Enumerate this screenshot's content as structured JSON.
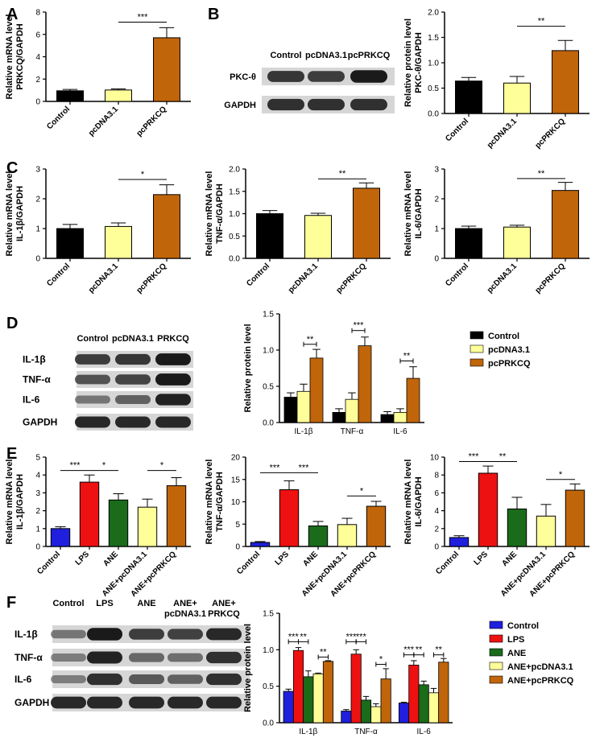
{
  "colors": {
    "control": "#000000",
    "pcdna": "#ffff99",
    "pcprkcq": "#c0650a",
    "blue": "#1f1fdd",
    "red": "#ee1111",
    "green": "#1a6b1a",
    "blot_bg": "#d6d6d6",
    "band": "#1a1a1a"
  },
  "panel_letters": [
    "A",
    "B",
    "C",
    "D",
    "E",
    "F"
  ],
  "blot_B": {
    "lanes": [
      "Control",
      "pcDNA3.1",
      "pcPRKCQ"
    ],
    "rows": [
      "PKC-θ",
      "GAPDH"
    ],
    "intensity": [
      [
        0.8,
        0.75,
        1.0
      ],
      [
        0.85,
        0.85,
        0.85
      ]
    ]
  },
  "blot_D": {
    "lanes": [
      "Control",
      "pcDNA3.1",
      "PRKCQ"
    ],
    "rows": [
      "IL-1β",
      "TNF-α",
      "IL-6",
      "GAPDH"
    ],
    "intensity": [
      [
        0.75,
        0.8,
        1.0
      ],
      [
        0.6,
        0.7,
        1.0
      ],
      [
        0.35,
        0.5,
        0.95
      ],
      [
        0.9,
        0.9,
        0.9
      ]
    ]
  },
  "blot_F": {
    "lanes": [
      "Control",
      "LPS",
      "ANE",
      "ANE+",
      "ANE+"
    ],
    "lanes_sub": [
      "",
      "",
      "",
      "pcDNA3.1",
      "PRKCQ"
    ],
    "rows": [
      "IL-1β",
      "TNF-α",
      "IL-6",
      "GAPDH"
    ],
    "intensity": [
      [
        0.35,
        1.0,
        0.75,
        0.72,
        0.9
      ],
      [
        0.3,
        0.95,
        0.45,
        0.4,
        0.85
      ],
      [
        0.3,
        0.85,
        0.55,
        0.5,
        0.85
      ],
      [
        0.9,
        0.9,
        0.9,
        0.9,
        0.9
      ]
    ]
  },
  "legend_D": [
    "Control",
    "pcDNA3.1",
    "pcPRKCQ"
  ],
  "legend_F": [
    "Control",
    "LPS",
    "ANE",
    "ANE+pcDNA3.1",
    "ANE+pcPRKCQ"
  ],
  "chart_data": [
    {
      "id": "A",
      "type": "bar",
      "categories": [
        "Control",
        "pcDNA3.1",
        "pcPRKCQ"
      ],
      "values": [
        0.95,
        1.02,
        5.7
      ],
      "errors": [
        0.12,
        0.1,
        0.9
      ],
      "ylabel": [
        "Relative mRNA level",
        "PRKCQ/GAPDH"
      ],
      "ylim": [
        0,
        8
      ],
      "yticks": [
        0,
        2,
        4,
        6,
        8
      ],
      "colors": [
        "control",
        "pcdna",
        "pcprkcq"
      ],
      "sig": [
        {
          "from": 1,
          "to": 2,
          "label": "***",
          "y": 7.1
        }
      ]
    },
    {
      "id": "B",
      "type": "bar",
      "categories": [
        "Control",
        "pcDNA3.1",
        "pcPRKCQ"
      ],
      "values": [
        0.64,
        0.6,
        1.24
      ],
      "errors": [
        0.07,
        0.13,
        0.2
      ],
      "ylabel": [
        "Relative protein level",
        "PKC-θ/GAPDH"
      ],
      "ylim": [
        0,
        2.0
      ],
      "yticks": [
        0.0,
        0.5,
        1.0,
        1.5,
        2.0
      ],
      "decimals": 1,
      "colors": [
        "control",
        "pcdna",
        "pcprkcq"
      ],
      "sig": [
        {
          "from": 1,
          "to": 2,
          "label": "**",
          "y": 1.72
        }
      ]
    },
    {
      "id": "C1",
      "type": "bar",
      "categories": [
        "Control",
        "pcDNA3.1",
        "pcPRKCQ"
      ],
      "values": [
        1.0,
        1.07,
        2.14
      ],
      "errors": [
        0.14,
        0.12,
        0.33
      ],
      "ylabel": [
        "Relative mRNA level",
        "IL-1β/GAPDH"
      ],
      "ylim": [
        0,
        3
      ],
      "yticks": [
        0,
        1,
        2,
        3
      ],
      "colors": [
        "control",
        "pcdna",
        "pcprkcq"
      ],
      "sig": [
        {
          "from": 1,
          "to": 2,
          "label": "*",
          "y": 2.65
        }
      ]
    },
    {
      "id": "C2",
      "type": "bar",
      "categories": [
        "Control",
        "pcDNA3.1",
        "pcPRKCQ"
      ],
      "values": [
        1.0,
        0.96,
        1.57
      ],
      "errors": [
        0.07,
        0.05,
        0.12
      ],
      "ylabel": [
        "Relative mRNA level",
        "TNF-α/GAPDH"
      ],
      "ylim": [
        0,
        2.0
      ],
      "yticks": [
        0.0,
        0.5,
        1.0,
        1.5,
        2.0
      ],
      "decimals": 1,
      "colors": [
        "control",
        "pcdna",
        "pcprkcq"
      ],
      "sig": [
        {
          "from": 1,
          "to": 2,
          "label": "**",
          "y": 1.78
        }
      ]
    },
    {
      "id": "C3",
      "type": "bar",
      "categories": [
        "Control",
        "pcDNA3.1",
        "pcPRKCQ"
      ],
      "values": [
        1.0,
        1.05,
        2.28
      ],
      "errors": [
        0.08,
        0.06,
        0.27
      ],
      "ylabel": [
        "Relative mRNA level",
        "IL-6/GAPDH"
      ],
      "ylim": [
        0,
        3
      ],
      "yticks": [
        0,
        1,
        2,
        3
      ],
      "colors": [
        "control",
        "pcdna",
        "pcprkcq"
      ],
      "sig": [
        {
          "from": 1,
          "to": 2,
          "label": "**",
          "y": 2.68
        }
      ]
    },
    {
      "id": "D",
      "type": "grouped-bar",
      "groups": [
        "IL-1β",
        "TNF-α",
        "IL-6"
      ],
      "series": [
        {
          "name": "Control",
          "color": "control",
          "values": [
            0.35,
            0.14,
            0.11
          ],
          "errors": [
            0.06,
            0.05,
            0.04
          ]
        },
        {
          "name": "pcDNA3.1",
          "color": "pcdna",
          "values": [
            0.43,
            0.32,
            0.14
          ],
          "errors": [
            0.1,
            0.09,
            0.05
          ]
        },
        {
          "name": "pcPRKCQ",
          "color": "pcprkcq",
          "values": [
            0.89,
            1.06,
            0.61
          ],
          "errors": [
            0.12,
            0.12,
            0.16
          ]
        }
      ],
      "ylabel": [
        "Relative protein level"
      ],
      "ylim": [
        0,
        1.5
      ],
      "yticks": [
        0.0,
        0.5,
        1.0,
        1.5
      ],
      "decimals": 1,
      "sig": [
        {
          "group": 0,
          "from": 1,
          "to": 2,
          "label": "**",
          "y": 1.08
        },
        {
          "group": 1,
          "from": 1,
          "to": 2,
          "label": "***",
          "y": 1.27
        },
        {
          "group": 2,
          "from": 1,
          "to": 2,
          "label": "**",
          "y": 0.85
        }
      ]
    },
    {
      "id": "E1",
      "type": "bar",
      "categories": [
        "Control",
        "LPS",
        "ANE",
        "ANE+pcDNA3.1",
        "ANE+pcPRKCQ"
      ],
      "values": [
        1.0,
        3.6,
        2.6,
        2.2,
        3.4
      ],
      "errors": [
        0.1,
        0.4,
        0.35,
        0.45,
        0.45
      ],
      "ylabel": [
        "Relative mRNA level",
        "IL-1β/GAPDH"
      ],
      "ylim": [
        0,
        5
      ],
      "yticks": [
        0,
        1,
        2,
        3,
        4,
        5
      ],
      "colors": [
        "blue",
        "red",
        "green",
        "pcdna",
        "pcprkcq"
      ],
      "sig": [
        {
          "from": 0,
          "to": 1,
          "label": "***",
          "y": 4.25
        },
        {
          "from": 1,
          "to": 2,
          "label": "*",
          "y": 4.25
        },
        {
          "from": 3,
          "to": 4,
          "label": "*",
          "y": 4.25
        }
      ]
    },
    {
      "id": "E2",
      "type": "bar",
      "categories": [
        "Control",
        "LPS",
        "ANE",
        "ANE+pcDNA3.1",
        "ANE+pcPRKCQ"
      ],
      "values": [
        0.9,
        12.7,
        4.6,
        4.9,
        9.0
      ],
      "errors": [
        0.2,
        2.0,
        1.0,
        1.4,
        1.1
      ],
      "ylabel": [
        "Relative mRNA level",
        "TNF-α/GAPDH"
      ],
      "ylim": [
        0,
        20
      ],
      "yticks": [
        0,
        5,
        10,
        15,
        20
      ],
      "colors": [
        "blue",
        "red",
        "green",
        "pcdna",
        "pcprkcq"
      ],
      "sig": [
        {
          "from": 0,
          "to": 1,
          "label": "***",
          "y": 16.5
        },
        {
          "from": 1,
          "to": 2,
          "label": "***",
          "y": 16.5
        },
        {
          "from": 3,
          "to": 4,
          "label": "*",
          "y": 11.3
        }
      ]
    },
    {
      "id": "E3",
      "type": "bar",
      "categories": [
        "Control",
        "LPS",
        "ANE",
        "ANE+pcDNA3.1",
        "ANE+pcPRKCQ"
      ],
      "values": [
        1.0,
        8.2,
        4.2,
        3.4,
        6.3
      ],
      "errors": [
        0.2,
        0.8,
        1.3,
        1.3,
        0.7
      ],
      "ylabel": [
        "Relative mRNA level",
        "IL-6/GAPDH"
      ],
      "ylim": [
        0,
        10
      ],
      "yticks": [
        0,
        2,
        4,
        6,
        8,
        10
      ],
      "colors": [
        "blue",
        "red",
        "green",
        "pcdna",
        "pcprkcq"
      ],
      "sig": [
        {
          "from": 0,
          "to": 1,
          "label": "***",
          "y": 9.5
        },
        {
          "from": 1,
          "to": 2,
          "label": "**",
          "y": 9.5
        },
        {
          "from": 3,
          "to": 4,
          "label": "*",
          "y": 7.5
        }
      ]
    },
    {
      "id": "F",
      "type": "grouped-bar",
      "groups": [
        "IL-1β",
        "TNF-α",
        "IL-6"
      ],
      "series": [
        {
          "name": "Control",
          "color": "blue",
          "values": [
            0.43,
            0.16,
            0.27
          ],
          "errors": [
            0.03,
            0.02,
            0.01
          ]
        },
        {
          "name": "LPS",
          "color": "red",
          "values": [
            0.99,
            0.94,
            0.79
          ],
          "errors": [
            0.04,
            0.06,
            0.06
          ]
        },
        {
          "name": "ANE",
          "color": "green",
          "values": [
            0.63,
            0.31,
            0.52
          ],
          "errors": [
            0.08,
            0.05,
            0.05
          ]
        },
        {
          "name": "ANE+pcDNA3.1",
          "color": "pcdna",
          "values": [
            0.67,
            0.22,
            0.41
          ],
          "errors": [
            0.01,
            0.04,
            0.06
          ]
        },
        {
          "name": "ANE+pcPRKCQ",
          "color": "pcprkcq",
          "values": [
            0.84,
            0.6,
            0.83
          ],
          "errors": [
            0.01,
            0.14,
            0.05
          ]
        }
      ],
      "ylabel": [
        "Relative protein level"
      ],
      "ylim": [
        0,
        1.5
      ],
      "yticks": [
        0.0,
        0.5,
        1.0,
        1.5
      ],
      "decimals": 1,
      "sig": [
        {
          "group": 0,
          "from": 0,
          "to": 1,
          "label": "***",
          "y": 1.11
        },
        {
          "group": 0,
          "from": 1,
          "to": 2,
          "label": "**",
          "y": 1.11
        },
        {
          "group": 0,
          "from": 3,
          "to": 4,
          "label": "**",
          "y": 0.9
        },
        {
          "group": 1,
          "from": 0,
          "to": 1,
          "label": "***",
          "y": 1.11
        },
        {
          "group": 1,
          "from": 1,
          "to": 2,
          "label": "***",
          "y": 1.11
        },
        {
          "group": 1,
          "from": 3,
          "to": 4,
          "label": "*",
          "y": 0.8
        },
        {
          "group": 2,
          "from": 0,
          "to": 1,
          "label": "***",
          "y": 0.93
        },
        {
          "group": 2,
          "from": 1,
          "to": 2,
          "label": "**",
          "y": 0.93
        },
        {
          "group": 2,
          "from": 3,
          "to": 4,
          "label": "**",
          "y": 0.93
        }
      ]
    }
  ]
}
